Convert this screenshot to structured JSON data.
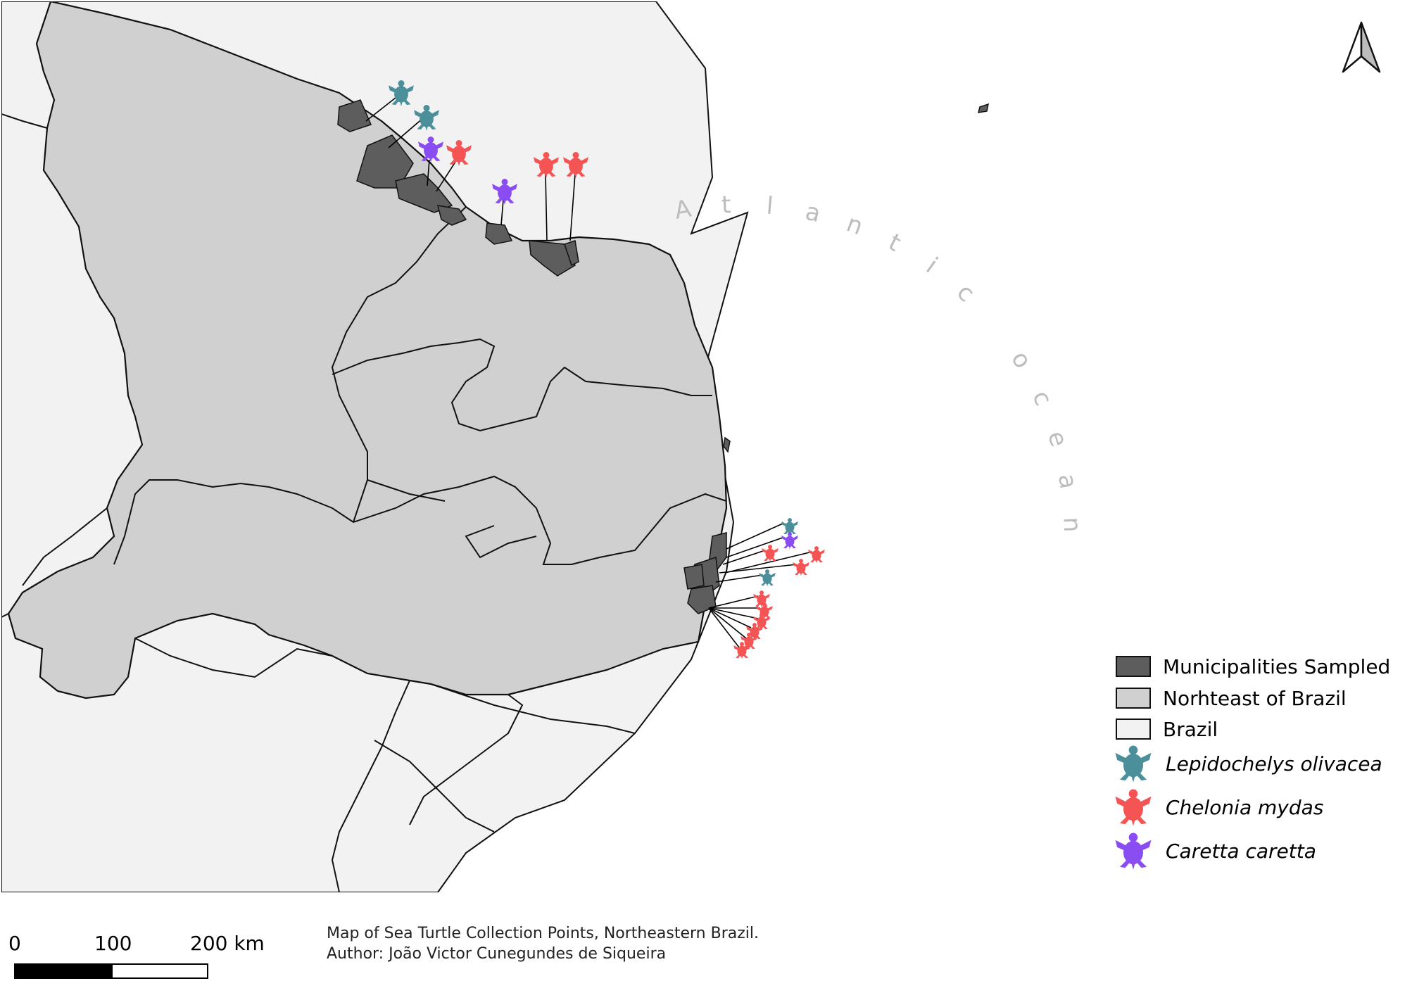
{
  "ocean_label": "Atlantic ocean",
  "legend": {
    "items": [
      {
        "label": "Municipalities Sampled",
        "swatch": "#5d5d5d",
        "kind": "box"
      },
      {
        "label": "Norhteast of Brazil",
        "swatch": "#d0d0d0",
        "kind": "box"
      },
      {
        "label": "Brazil",
        "swatch": "#f2f2f2",
        "kind": "box"
      },
      {
        "label": "Lepidochelys olivacea",
        "swatch": "#4a8f9a",
        "kind": "turtle"
      },
      {
        "label": "Chelonia mydas",
        "swatch": "#f55454",
        "kind": "turtle"
      },
      {
        "label": "Caretta caretta",
        "swatch": "#8a4df2",
        "kind": "turtle"
      }
    ]
  },
  "scale_bar": {
    "labels": [
      "0",
      "100",
      "200 km"
    ]
  },
  "caption": {
    "title": "Map of Sea Turtle Collection Points, Northeastern Brazil.",
    "author": "Author: João Victor Cunegundes de Siqueira"
  },
  "colors": {
    "brazil": "#f2f2f2",
    "northeast": "#d0d0d0",
    "municipalities": "#5d5d5d",
    "ocean": "#ffffff",
    "olivacea": "#4a8f9a",
    "mydas": "#f55454",
    "caretta": "#8a4df2"
  },
  "icons": {
    "north_arrow": "north-arrow-icon",
    "turtle": "sea-turtle-icon"
  }
}
